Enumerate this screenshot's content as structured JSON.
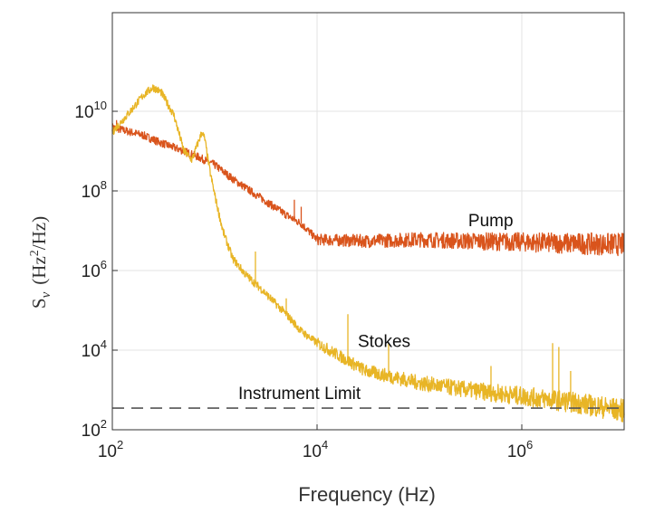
{
  "chart_data": {
    "type": "line",
    "x_scale": "log",
    "y_scale": "log",
    "xlim": [
      100,
      10000000
    ],
    "ylim": [
      100,
      3000000000000
    ],
    "grid": true,
    "xlabel": "Frequency (Hz)",
    "ylabel": {
      "base": "S",
      "subscript": "v",
      "units_open": "(Hz",
      "units_power": "2",
      "units_close": "/Hz)"
    },
    "x_ticks": [
      {
        "value": 100,
        "base": "10",
        "exp": "2"
      },
      {
        "value": 10000,
        "base": "10",
        "exp": "4"
      },
      {
        "value": 1000000,
        "base": "10",
        "exp": "6"
      }
    ],
    "y_ticks": [
      {
        "value": 100,
        "base": "10",
        "exp": "2"
      },
      {
        "value": 10000,
        "base": "10",
        "exp": "4"
      },
      {
        "value": 1000000,
        "base": "10",
        "exp": "6"
      },
      {
        "value": 100000000,
        "base": "10",
        "exp": "8"
      },
      {
        "value": 10000000000,
        "base": "10",
        "exp": "10"
      }
    ],
    "series": [
      {
        "name": "Pump",
        "color": "#d9541c",
        "points": [
          [
            100,
            4000000000
          ],
          [
            150,
            3000000000
          ],
          [
            200,
            2500000000
          ],
          [
            300,
            1600000000
          ],
          [
            500,
            1000000000
          ],
          [
            700,
            700000000
          ],
          [
            1000,
            450000000
          ],
          [
            1500,
            200000000
          ],
          [
            2000,
            120000000
          ],
          [
            3000,
            60000000
          ],
          [
            5000,
            25000000
          ],
          [
            7000,
            15000000
          ],
          [
            10000,
            6000000
          ],
          [
            30000,
            5500000
          ],
          [
            100000,
            6000000
          ],
          [
            300000,
            5500000
          ],
          [
            1000000,
            5200000
          ],
          [
            3000000,
            4800000
          ],
          [
            10000000,
            4500000
          ]
        ],
        "spikes": [
          [
            110,
            6000000000
          ],
          [
            6000,
            60000000
          ],
          [
            7000,
            40000000
          ]
        ]
      },
      {
        "name": "Stokes",
        "color": "#e8b526",
        "points": [
          [
            100,
            3000000000
          ],
          [
            150,
            10000000000
          ],
          [
            200,
            25000000000
          ],
          [
            250,
            40000000000
          ],
          [
            300,
            30000000000
          ],
          [
            400,
            8000000000
          ],
          [
            500,
            1000000000
          ],
          [
            600,
            600000000
          ],
          [
            750,
            3000000000
          ],
          [
            800,
            2000000000
          ],
          [
            900,
            300000000
          ],
          [
            1000,
            80000000
          ],
          [
            1200,
            10000000
          ],
          [
            1500,
            2000000
          ],
          [
            2000,
            800000
          ],
          [
            3000,
            300000
          ],
          [
            5000,
            80000
          ],
          [
            7000,
            30000
          ],
          [
            10000,
            15000
          ],
          [
            30000,
            3000
          ],
          [
            100000,
            1500
          ],
          [
            300000,
            1000
          ],
          [
            1000000,
            700
          ],
          [
            3000000,
            500
          ],
          [
            10000000,
            300
          ]
        ],
        "spikes": [
          [
            2500,
            3000000
          ],
          [
            5000,
            200000
          ],
          [
            20000,
            80000
          ],
          [
            50000,
            15000
          ],
          [
            500000,
            4000
          ],
          [
            2000000,
            15000
          ],
          [
            2300000,
            12000
          ],
          [
            3000000,
            3000
          ]
        ]
      },
      {
        "name": "Instrument Limit",
        "color": "#555555",
        "dashed": true,
        "points": [
          [
            100,
            350
          ],
          [
            10000000,
            350
          ]
        ]
      }
    ],
    "annotations": [
      {
        "text": "Pump",
        "x": 300000,
        "y": 13000000
      },
      {
        "text": "Stokes",
        "x": 25000,
        "y": 12000
      },
      {
        "text": "Instrument Limit",
        "x": 1700,
        "y": 600
      }
    ]
  }
}
